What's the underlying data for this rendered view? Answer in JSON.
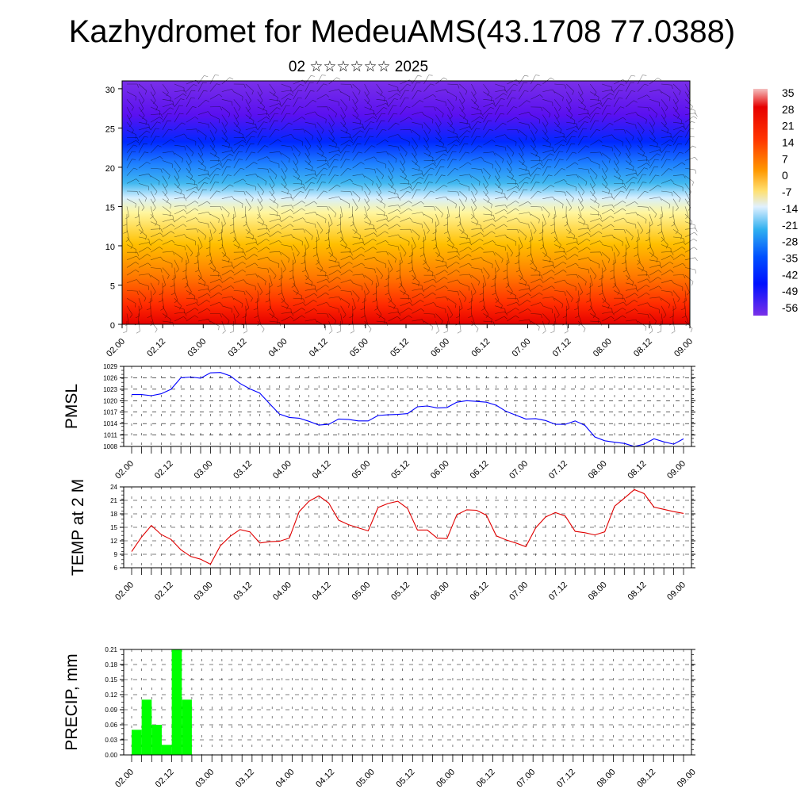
{
  "title": "Kazhydromet for MedeuAMS(43.1708 77.0388)",
  "subtitle": "02 ☆☆☆☆☆☆ 2025",
  "colorbar": {
    "labels": [
      "35",
      "28",
      "21",
      "14",
      "7",
      "0",
      "-7",
      "-14",
      "-21",
      "-28",
      "-35",
      "-42",
      "-49",
      "-56"
    ],
    "colors": [
      "#f1a0a0",
      "#e60000",
      "#ff3300",
      "#ff6600",
      "#ff9900",
      "#ffc800",
      "#fff080",
      "#c8e6ff",
      "#40b8f0",
      "#1e90ff",
      "#0050ff",
      "#0010ff",
      "#4400e8",
      "#7a30e8"
    ]
  },
  "chart_data": [
    {
      "type": "heatmap",
      "description_of_fields": "vertical section: temperature shading with wind barbs",
      "x_tick_labels": [
        "02.00",
        "02.12",
        "03.00",
        "03.12",
        "04.00",
        "04.12",
        "05.00",
        "05.12",
        "06.00",
        "06.12",
        "07.00",
        "07.12",
        "08.00",
        "08.12",
        "09.00"
      ],
      "y_tick_labels": [
        "0",
        "5",
        "10",
        "15",
        "20",
        "25",
        "30"
      ],
      "ylim": [
        0,
        31
      ],
      "colorbar_range": [
        -56,
        35
      ]
    },
    {
      "type": "line",
      "ylabel": "PMSL",
      "color": "#0000ff",
      "x_tick_labels": [
        "02.00",
        "02.12",
        "03.00",
        "03.12",
        "04.00",
        "04.12",
        "05.00",
        "05.12",
        "06.00",
        "06.12",
        "07.00",
        "07.12",
        "08.00",
        "08.12",
        "09.00"
      ],
      "y_tick_labels": [
        "1008",
        "1011",
        "1014",
        "1017",
        "1020",
        "1023",
        "1026",
        "1029"
      ],
      "ylim": [
        1008,
        1029
      ],
      "step_hours": 3,
      "values": [
        1021.6,
        1021.6,
        1021.3,
        1021.8,
        1023.0,
        1026.0,
        1026.2,
        1025.9,
        1027.3,
        1027.4,
        1026.5,
        1024.5,
        1023.1,
        1022.0,
        1019.2,
        1016.5,
        1015.6,
        1015.4,
        1014.6,
        1013.6,
        1013.8,
        1015.2,
        1015.1,
        1014.7,
        1014.7,
        1016.1,
        1016.3,
        1016.4,
        1016.6,
        1018.4,
        1018.6,
        1018.1,
        1018.2,
        1019.6,
        1020.0,
        1019.8,
        1019.6,
        1018.8,
        1017.2,
        1016.2,
        1015.2,
        1015.3,
        1014.8,
        1013.8,
        1013.8,
        1014.7,
        1013.5,
        1010.5,
        1009.5,
        1009.1,
        1008.8,
        1008.0,
        1008.6,
        1010.0,
        1009.2,
        1008.6,
        1010.0
      ]
    },
    {
      "type": "line",
      "ylabel": "TEMP at 2 M",
      "color": "#e00000",
      "x_tick_labels": [
        "02.00",
        "02.12",
        "03.00",
        "03.12",
        "04.00",
        "04.12",
        "05.00",
        "05.12",
        "06.00",
        "06.12",
        "07.00",
        "07.12",
        "08.00",
        "08.12",
        "09.00"
      ],
      "y_tick_labels": [
        "6",
        "9",
        "12",
        "15",
        "18",
        "21",
        "24"
      ],
      "ylim": [
        6,
        24
      ],
      "step_hours": 3,
      "values": [
        9.6,
        12.8,
        15.4,
        13.4,
        12.3,
        10.0,
        8.5,
        7.9,
        6.8,
        10.9,
        13.0,
        14.5,
        14.0,
        11.5,
        11.8,
        11.9,
        12.6,
        18.5,
        20.8,
        22.0,
        20.4,
        16.6,
        15.6,
        14.9,
        14.2,
        19.4,
        20.3,
        20.8,
        19.2,
        14.4,
        14.4,
        12.6,
        12.5,
        17.8,
        18.9,
        18.8,
        17.7,
        13.1,
        12.2,
        11.5,
        10.7,
        14.9,
        17.3,
        18.3,
        17.5,
        14.1,
        13.8,
        13.3,
        14.0,
        19.7,
        21.5,
        23.4,
        22.5,
        19.5,
        19.0,
        18.5,
        18.1
      ]
    },
    {
      "type": "bar",
      "ylabel": "PRECIP, mm",
      "color": "#00ff00",
      "x_tick_labels": [
        "02.00",
        "02.12",
        "03.00",
        "03.12",
        "04.00",
        "04.12",
        "05.00",
        "05.12",
        "06.00",
        "06.12",
        "07.00",
        "07.12",
        "08.00",
        "08.12",
        "09.00"
      ],
      "y_tick_labels": [
        "0.00",
        "0.03",
        "0.06",
        "0.09",
        "0.12",
        "0.15",
        "0.18",
        "0.21"
      ],
      "ylim": [
        0,
        0.21
      ],
      "step_hours": 3,
      "values": [
        0.05,
        0.11,
        0.06,
        0.02,
        0.21,
        0.11,
        0,
        0,
        0,
        0,
        0,
        0,
        0,
        0,
        0,
        0,
        0,
        0,
        0,
        0,
        0,
        0,
        0,
        0,
        0,
        0,
        0,
        0,
        0,
        0,
        0,
        0,
        0,
        0,
        0,
        0,
        0,
        0,
        0,
        0,
        0,
        0,
        0,
        0,
        0,
        0,
        0,
        0,
        0,
        0,
        0,
        0,
        0,
        0,
        0,
        0
      ]
    }
  ]
}
